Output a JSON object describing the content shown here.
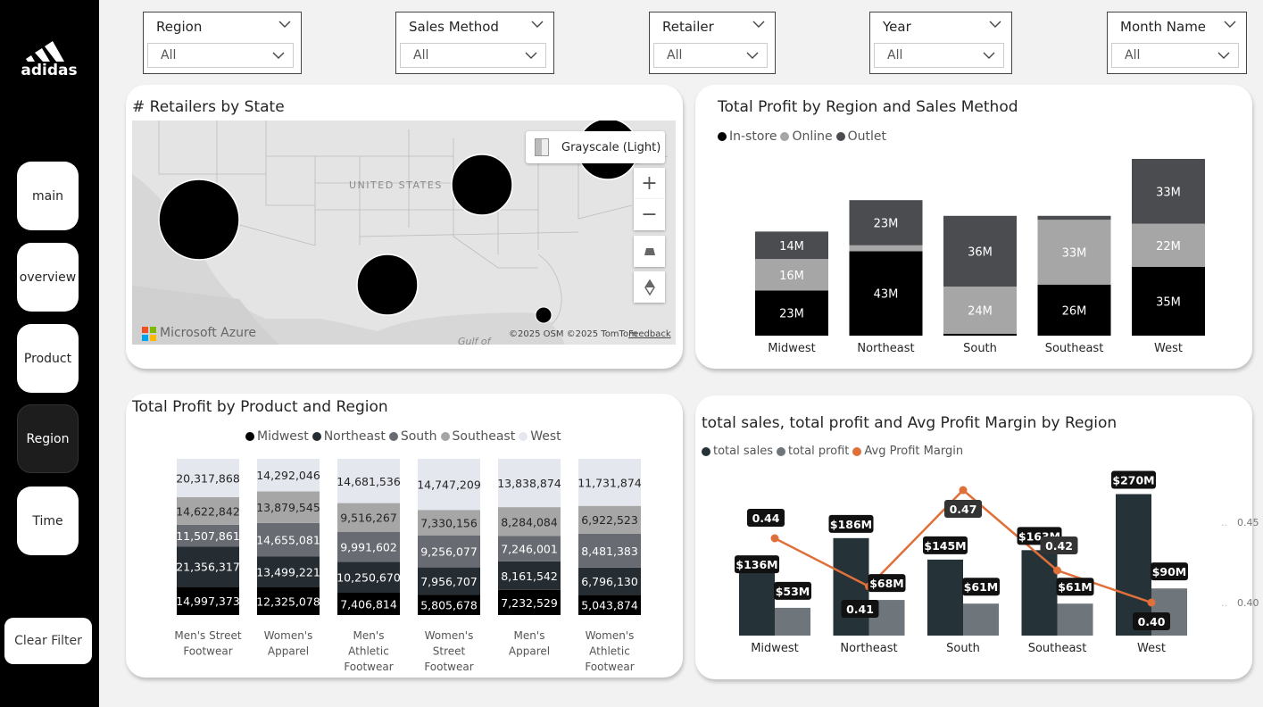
{
  "app": {
    "brand": "adidas"
  },
  "nav": {
    "items": [
      {
        "label": "main"
      },
      {
        "label": "overview"
      },
      {
        "label": "Product"
      },
      {
        "label": "Region",
        "active": true
      },
      {
        "label": "Time"
      }
    ],
    "clear_filter": "Clear Filter"
  },
  "slicers": [
    {
      "label": "Region",
      "value": "All"
    },
    {
      "label": "Sales Method",
      "value": "All"
    },
    {
      "label": "Retailer",
      "value": "All"
    },
    {
      "label": "Year",
      "value": "All"
    },
    {
      "label": "Month Name",
      "value": "All"
    }
  ],
  "map": {
    "title": "# Retailers by State",
    "style_label": "Grayscale (Light)",
    "country_label": "UNITED STATES",
    "gulf_label": "Gulf of",
    "provider": "Microsoft Azure",
    "copyright": "©2025 OSM ©2025 TomTom",
    "feedback": "Feedback",
    "controls": {
      "zoom_in": "+",
      "zoom_out": "−"
    }
  },
  "colors": {
    "black": "#000000",
    "dark_gray": "#4a4c50",
    "light_gray": "#a6a6a6",
    "very_light": "#e4e7ee",
    "teal_dark": "#253339",
    "slate": "#6f767b",
    "orange": "#e0703a",
    "northeast": "#252d33",
    "south": "#686c72",
    "southeast": "#a6a6a6"
  },
  "chart_data": [
    {
      "id": "profit_region_method",
      "type": "bar",
      "stacked": true,
      "title": "Total Profit by Region and Sales Method",
      "categories": [
        "Midwest",
        "Northeast",
        "South",
        "Southeast",
        "West"
      ],
      "series": [
        {
          "name": "In-store",
          "color": "#000000",
          "values": [
            23,
            43,
            1,
            26,
            35
          ],
          "labels": [
            "23M",
            "43M",
            "",
            "26M",
            "35M"
          ]
        },
        {
          "name": "Online",
          "color": "#a6a6a6",
          "values": [
            16,
            3,
            24,
            33,
            22
          ],
          "labels": [
            "16M",
            "",
            "24M",
            "33M",
            "22M"
          ]
        },
        {
          "name": "Outlet",
          "color": "#4a4c50",
          "values": [
            14,
            23,
            36,
            2,
            33
          ],
          "labels": [
            "14M",
            "23M",
            "36M",
            "",
            "33M"
          ]
        }
      ],
      "legend_position": "top-left"
    },
    {
      "id": "profit_product_region",
      "type": "bar",
      "stacked": true,
      "normalized": true,
      "title": "Total Profit by Product and Region",
      "categories": [
        "Men's Street Footwear",
        "Women's Apparel",
        "Men's Athletic Footwear",
        "Women's Street Footwear",
        "Men's Apparel",
        "Women's Athletic Footwear"
      ],
      "category_lines": [
        [
          "Men's Street",
          "Footwear"
        ],
        [
          "Women's",
          "Apparel"
        ],
        [
          "Men's",
          "Athletic",
          "Footwear"
        ],
        [
          "Women's",
          "Street",
          "Footwear"
        ],
        [
          "Men's",
          "Apparel"
        ],
        [
          "Women's",
          "Athletic",
          "Footwear"
        ]
      ],
      "series": [
        {
          "name": "Midwest",
          "color": "#000000",
          "values": [
            14997373,
            12325078,
            7406814,
            5805678,
            7232529,
            5043874
          ],
          "labels": [
            "14,997,373",
            "12,325,078",
            "7,406,814",
            "5,805,678",
            "7,232,529",
            "5,043,874"
          ]
        },
        {
          "name": "Northeast",
          "color": "#252d33",
          "values": [
            21356317,
            13499221,
            10250670,
            7956707,
            8161542,
            6796130
          ],
          "labels": [
            "21,356,317",
            "13,499,221",
            "10,250,670",
            "7,956,707",
            "8,161,542",
            "6,796,130"
          ]
        },
        {
          "name": "South",
          "color": "#686c72",
          "values": [
            11507861,
            14655081,
            9991602,
            9256077,
            7246001,
            8481383
          ],
          "labels": [
            "11,507,861",
            "14,655,081",
            "9,991,602",
            "9,256,077",
            "7,246,001",
            "8,481,383"
          ]
        },
        {
          "name": "Southeast",
          "color": "#a6a6a6",
          "values": [
            14622842,
            13879545,
            9516267,
            7330156,
            8284084,
            6922523
          ],
          "labels": [
            "14,622,842",
            "13,879,545",
            "9,516,267",
            "7,330,156",
            "8,284,084",
            "6,922,523"
          ]
        },
        {
          "name": "West",
          "color": "#e4e7ee",
          "values": [
            20317868,
            14292046,
            14681536,
            14747209,
            13838874,
            11731874
          ],
          "labels": [
            "20,317,868",
            "14,292,046",
            "14,681,536",
            "14,747,209",
            "13,838,874",
            "11,731,874"
          ]
        }
      ],
      "legend_position": "top-center"
    },
    {
      "id": "sales_profit_margin",
      "type": "bar",
      "combo": "line",
      "title": "total sales, total profit and Avg Profit Margin by Region",
      "categories": [
        "Midwest",
        "Northeast",
        "South",
        "Southeast",
        "West"
      ],
      "series": [
        {
          "name": "total sales",
          "color": "#253339",
          "values": [
            136,
            186,
            145,
            163,
            270
          ],
          "labels": [
            "$136M",
            "$186M",
            "$145M",
            "$163M",
            "$270M"
          ]
        },
        {
          "name": "total profit",
          "color": "#6f767b",
          "values": [
            53,
            68,
            61,
            61,
            90
          ],
          "labels": [
            "$53M",
            "$68M",
            "$61M",
            "$61M",
            "$90M"
          ]
        },
        {
          "name": "Avg Profit Margin",
          "color": "#e0703a",
          "type": "line",
          "axis": "right",
          "values": [
            0.44,
            0.41,
            0.47,
            0.42,
            0.4
          ],
          "labels": [
            "0.44",
            "0.41",
            "0.47",
            "0.42",
            "0.40"
          ]
        }
      ],
      "y2_ticks": [
        "0.45",
        "0.40"
      ],
      "legend_position": "top-left"
    }
  ]
}
